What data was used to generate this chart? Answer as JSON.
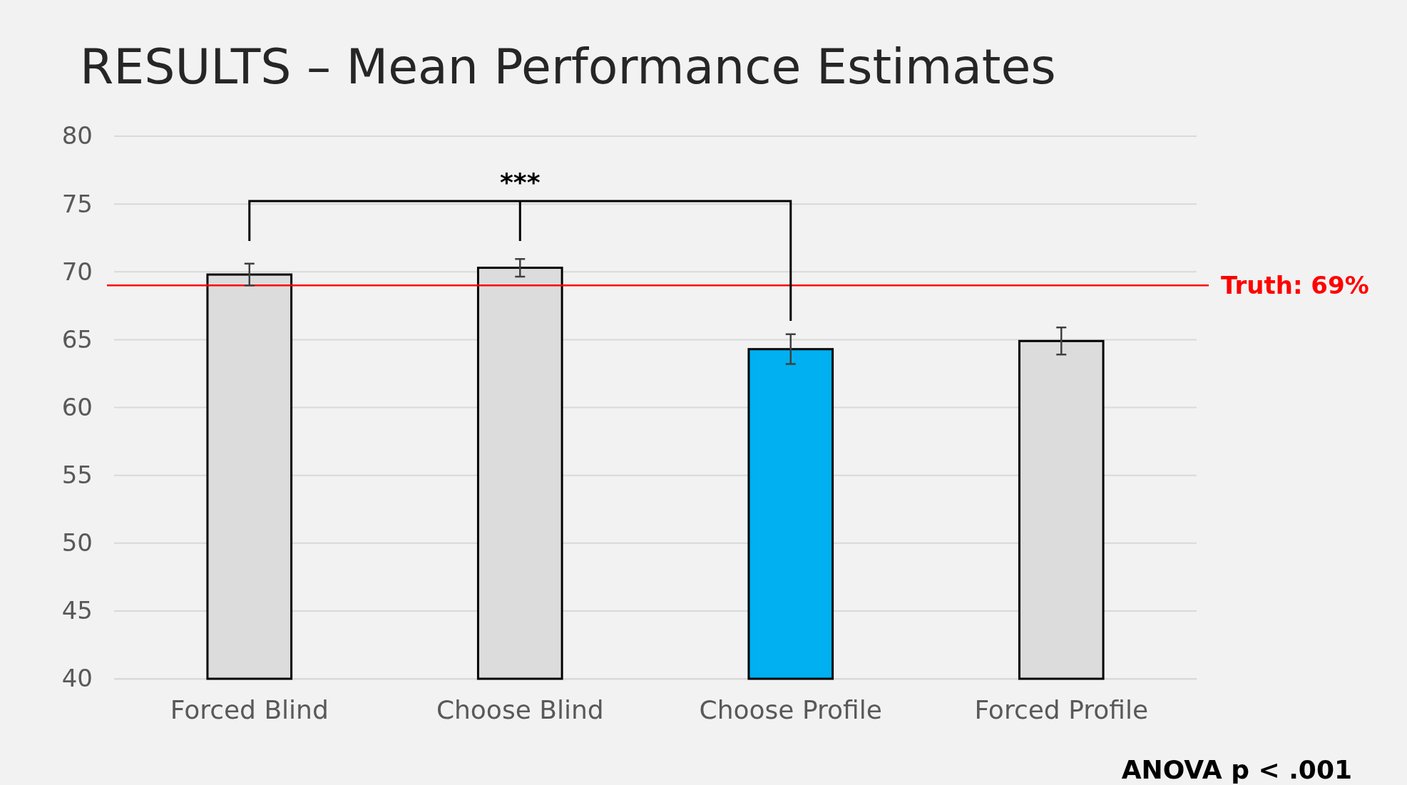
{
  "chart_data": {
    "type": "bar",
    "title": "RESULTS – Mean Performance Estimates",
    "categories": [
      "Forced Blind",
      "Choose Blind",
      "Choose Profile",
      "Forced Profile"
    ],
    "values": [
      69.8,
      70.3,
      64.3,
      64.9
    ],
    "colors": [
      "#dcdcdc",
      "#dcdcdc",
      "#00b0f0",
      "#dcdcdc"
    ],
    "errors": [
      0.8,
      0.65,
      1.1,
      1.0
    ],
    "ylim": [
      40,
      80
    ],
    "yticks": [
      40,
      45,
      50,
      55,
      60,
      65,
      70,
      75,
      80
    ],
    "grid": "y",
    "ref_lines": [
      {
        "axis": "y",
        "value": 69,
        "label": "Truth: 69%",
        "color": "#ff0000"
      }
    ],
    "annotations": [
      "***",
      "ANOVA p < .001"
    ]
  }
}
